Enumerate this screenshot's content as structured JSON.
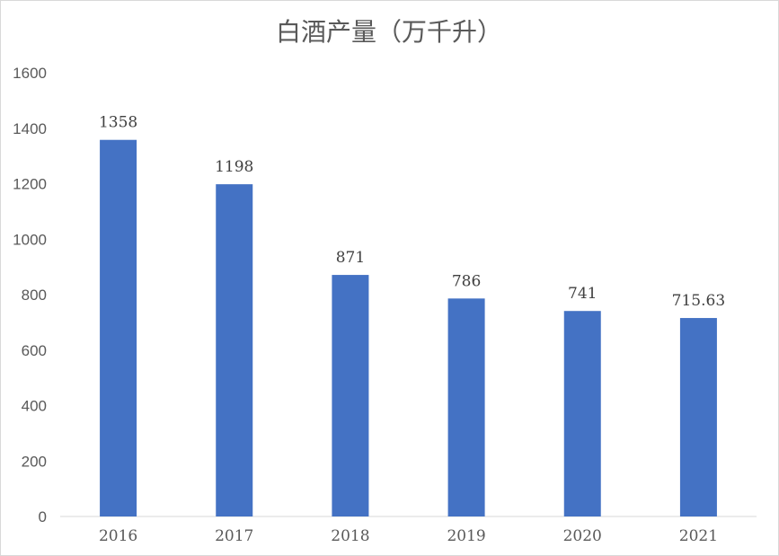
{
  "chart_data": {
    "type": "bar",
    "title": "白酒产量（万千升）",
    "categories": [
      "2016",
      "2017",
      "2018",
      "2019",
      "2020",
      "2021"
    ],
    "values": [
      1358,
      1198,
      871,
      786,
      741,
      715.63
    ],
    "data_labels": [
      "1358",
      "1198",
      "871",
      "786",
      "741",
      "715.63"
    ],
    "yticks": [
      "0",
      "200",
      "400",
      "600",
      "800",
      "1000",
      "1200",
      "1400",
      "1600"
    ],
    "ylim": [
      0,
      1600
    ],
    "xlabel": "",
    "ylabel": "",
    "grid": false,
    "legend": "none",
    "bar_color": "#4472C4"
  }
}
